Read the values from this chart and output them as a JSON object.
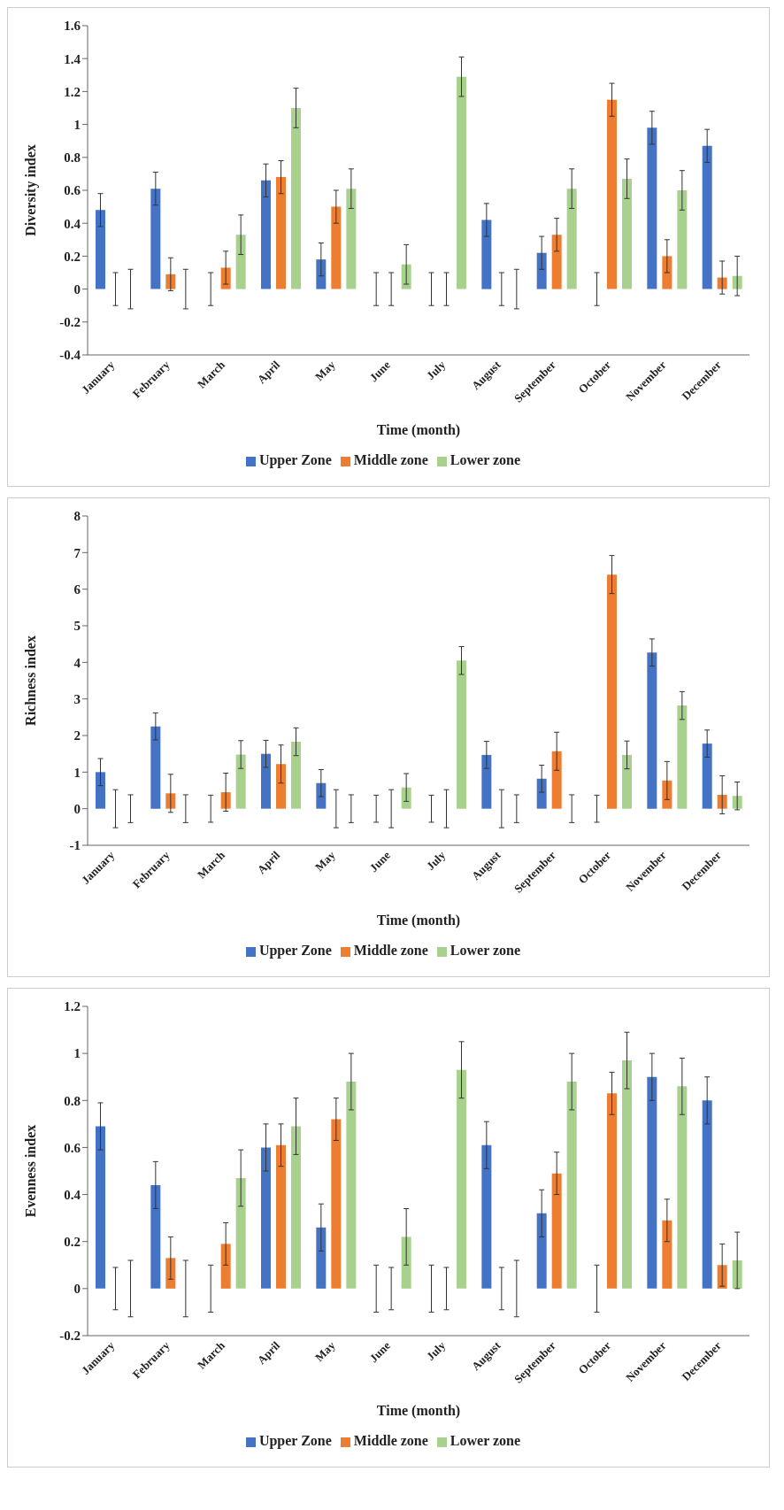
{
  "chart_data": [
    {
      "type": "bar",
      "xlabel": "Time (month)",
      "ylabel": "Diversity index",
      "categories": [
        "January",
        "February",
        "March",
        "April",
        "May",
        "June",
        "July",
        "August",
        "September",
        "October",
        "November",
        "December"
      ],
      "ylim": [
        -0.4,
        1.6
      ],
      "yticks": [
        -0.4,
        -0.2,
        0,
        0.2,
        0.4,
        0.6,
        0.8,
        1,
        1.2,
        1.4,
        1.6
      ],
      "grid": false,
      "legend": "bottom",
      "series": [
        {
          "name": "Upper Zone",
          "color": "#4472c4",
          "values": [
            0.48,
            0.61,
            0,
            0.66,
            0.18,
            0,
            0,
            0.42,
            0.22,
            0,
            0.98,
            0.87
          ],
          "errors": [
            0.1,
            0.1,
            0.1,
            0.1,
            0.1,
            0.1,
            0.1,
            0.1,
            0.1,
            0.1,
            0.1,
            0.1
          ]
        },
        {
          "name": "Middle zone",
          "color": "#ed7d31",
          "values": [
            0,
            0.09,
            0.13,
            0.68,
            0.5,
            0,
            0,
            0,
            0.33,
            1.15,
            0.2,
            0.07
          ],
          "errors": [
            0.1,
            0.1,
            0.1,
            0.1,
            0.1,
            0.1,
            0.1,
            0.1,
            0.1,
            0.1,
            0.1,
            0.1
          ]
        },
        {
          "name": "Lower zone",
          "color": "#a9d18e",
          "values": [
            0,
            0,
            0.33,
            1.1,
            0.61,
            0.15,
            1.29,
            0,
            0.61,
            0.67,
            0.6,
            0.08
          ],
          "errors": [
            0.12,
            0.12,
            0.12,
            0.12,
            0.12,
            0.12,
            0.12,
            0.12,
            0.12,
            0.12,
            0.12,
            0.12
          ]
        }
      ]
    },
    {
      "type": "bar",
      "xlabel": "Time (month)",
      "ylabel": "Richness index",
      "categories": [
        "January",
        "February",
        "March",
        "April",
        "May",
        "June",
        "July",
        "August",
        "September",
        "October",
        "November",
        "December"
      ],
      "ylim": [
        -1,
        8
      ],
      "yticks": [
        -1,
        0,
        1,
        2,
        3,
        4,
        5,
        6,
        7,
        8
      ],
      "grid": false,
      "legend": "bottom",
      "series": [
        {
          "name": "Upper Zone",
          "color": "#4472c4",
          "values": [
            1.0,
            2.25,
            0,
            1.5,
            0.7,
            0,
            0,
            1.47,
            0.82,
            0,
            4.27,
            1.78
          ],
          "errors": [
            0.37,
            0.37,
            0.37,
            0.37,
            0.37,
            0.37,
            0.37,
            0.37,
            0.37,
            0.37,
            0.37,
            0.37
          ]
        },
        {
          "name": "Middle zone",
          "color": "#ed7d31",
          "values": [
            0,
            0.42,
            0.45,
            1.22,
            0,
            0,
            0,
            0,
            1.57,
            6.4,
            0.77,
            0.38
          ],
          "errors": [
            0.52,
            0.52,
            0.52,
            0.52,
            0.52,
            0.52,
            0.52,
            0.52,
            0.52,
            0.52,
            0.52,
            0.52
          ]
        },
        {
          "name": "Lower zone",
          "color": "#a9d18e",
          "values": [
            0,
            0,
            1.48,
            1.83,
            0,
            0.58,
            4.05,
            0,
            0,
            1.47,
            2.82,
            0.35
          ],
          "errors": [
            0.38,
            0.38,
            0.38,
            0.38,
            0.38,
            0.38,
            0.38,
            0.38,
            0.38,
            0.38,
            0.38,
            0.38
          ]
        }
      ]
    },
    {
      "type": "bar",
      "xlabel": "Time (month)",
      "ylabel": "Evenness index",
      "categories": [
        "January",
        "February",
        "March",
        "April",
        "May",
        "June",
        "July",
        "August",
        "September",
        "October",
        "November",
        "December"
      ],
      "ylim": [
        -0.2,
        1.2
      ],
      "yticks": [
        -0.2,
        0,
        0.2,
        0.4,
        0.6,
        0.8,
        1,
        1.2
      ],
      "grid": false,
      "legend": "bottom",
      "series": [
        {
          "name": "Upper Zone",
          "color": "#4472c4",
          "values": [
            0.69,
            0.44,
            0,
            0.6,
            0.26,
            0,
            0,
            0.61,
            0.32,
            0,
            0.9,
            0.8
          ],
          "errors": [
            0.1,
            0.1,
            0.1,
            0.1,
            0.1,
            0.1,
            0.1,
            0.1,
            0.1,
            0.1,
            0.1,
            0.1
          ]
        },
        {
          "name": "Middle zone",
          "color": "#ed7d31",
          "values": [
            0,
            0.13,
            0.19,
            0.61,
            0.72,
            0,
            0,
            0,
            0.49,
            0.83,
            0.29,
            0.1
          ],
          "errors": [
            0.09,
            0.09,
            0.09,
            0.09,
            0.09,
            0.09,
            0.09,
            0.09,
            0.09,
            0.09,
            0.09,
            0.09
          ]
        },
        {
          "name": "Lower zone",
          "color": "#a9d18e",
          "values": [
            0,
            0,
            0.47,
            0.69,
            0.88,
            0.22,
            0.93,
            0,
            0.88,
            0.97,
            0.86,
            0.12
          ],
          "errors": [
            0.12,
            0.12,
            0.12,
            0.12,
            0.12,
            0.12,
            0.12,
            0.12,
            0.12,
            0.12,
            0.12,
            0.12
          ]
        }
      ]
    }
  ]
}
